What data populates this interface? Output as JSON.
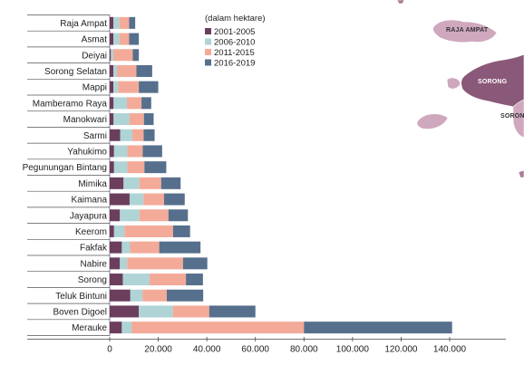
{
  "chart_data": {
    "type": "bar",
    "orientation": "horizontal",
    "stacked": true,
    "categories": [
      "Raja Ampat",
      "Asmat",
      "Deiyai",
      "Sorong Selatan",
      "Mappi",
      "Mamberamo Raya",
      "Manokwari",
      "Sarmi",
      "Yahukimo",
      "Pegunungan Bintang",
      "Mimika",
      "Kaimana",
      "Jayapura",
      "Keerom",
      "Fakfak",
      "Nabire",
      "Sorong",
      "Teluk Bintuni",
      "Boven Digoel",
      "Merauke"
    ],
    "series": [
      {
        "name": "2001-2005",
        "color": "#6b3e5e",
        "values": [
          1500,
          1500,
          500,
          1500,
          1500,
          1600,
          1600,
          4300,
          1800,
          1800,
          5700,
          8200,
          4200,
          1800,
          5000,
          4200,
          5400,
          8500,
          12000,
          5000
        ]
      },
      {
        "name": "2006-2010",
        "color": "#aed4d6",
        "values": [
          2500,
          2500,
          1000,
          1500,
          2000,
          5500,
          6500,
          5000,
          5500,
          5500,
          6500,
          5700,
          8000,
          4300,
          3400,
          3000,
          11000,
          5000,
          14000,
          4000
        ]
      },
      {
        "name": "2011-2015",
        "color": "#f4aa98",
        "values": [
          4000,
          4000,
          8000,
          8000,
          8500,
          6000,
          6000,
          4700,
          6300,
          7000,
          9000,
          8500,
          12000,
          20000,
          12000,
          23000,
          15000,
          10000,
          15000,
          71000
        ]
      },
      {
        "name": "2016-2019",
        "color": "#566f8c",
        "values": [
          2500,
          4000,
          2500,
          6500,
          8000,
          4000,
          4000,
          4500,
          8000,
          9000,
          8000,
          8500,
          8000,
          7000,
          17000,
          10000,
          7000,
          15000,
          19000,
          61000
        ]
      }
    ],
    "xlim": [
      0,
      140000
    ],
    "xticks": [
      0,
      20000,
      40000,
      60000,
      80000,
      100000,
      120000,
      140000
    ],
    "xtick_labels": [
      "0",
      "20.000",
      "40.000",
      "60.000",
      "80.000",
      "100.000",
      "120.000",
      "140.000"
    ],
    "legend_title": "(dalam hektare)",
    "legend_position": "top-center",
    "xlabel": "",
    "ylabel": ""
  },
  "map": {
    "labels": [
      "RAJA AMPAT",
      "SORONG",
      "SORONG"
    ],
    "colors": {
      "light": "#cfa8be",
      "dark": "#8a5878",
      "edge": "#a97c97"
    }
  }
}
